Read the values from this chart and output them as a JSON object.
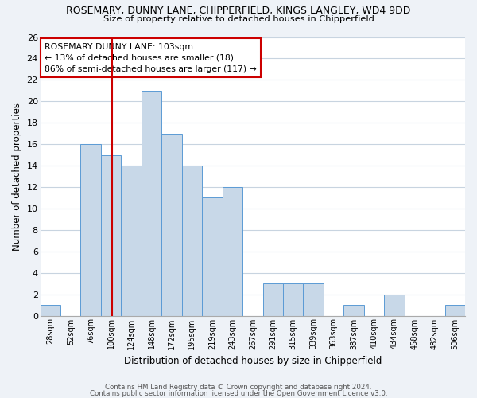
{
  "title": "ROSEMARY, DUNNY LANE, CHIPPERFIELD, KINGS LANGLEY, WD4 9DD",
  "subtitle": "Size of property relative to detached houses in Chipperfield",
  "xlabel": "Distribution of detached houses by size in Chipperfield",
  "ylabel": "Number of detached properties",
  "bin_labels": [
    "28sqm",
    "52sqm",
    "76sqm",
    "100sqm",
    "124sqm",
    "148sqm",
    "172sqm",
    "195sqm",
    "219sqm",
    "243sqm",
    "267sqm",
    "291sqm",
    "315sqm",
    "339sqm",
    "363sqm",
    "387sqm",
    "410sqm",
    "434sqm",
    "458sqm",
    "482sqm",
    "506sqm"
  ],
  "bar_heights": [
    1,
    0,
    16,
    15,
    14,
    21,
    17,
    14,
    11,
    12,
    0,
    3,
    3,
    3,
    0,
    1,
    0,
    2,
    0,
    0,
    1
  ],
  "bar_color": "#c8d8e8",
  "bar_edge_color": "#5b9bd5",
  "vline_x_index": 3,
  "annotation_title": "ROSEMARY DUNNY LANE: 103sqm",
  "annotation_line1": "← 13% of detached houses are smaller (18)",
  "annotation_line2": "86% of semi-detached houses are larger (117) →",
  "annotation_box_color": "#ffffff",
  "annotation_box_edge": "#cc0000",
  "ylim": [
    0,
    26
  ],
  "yticks": [
    0,
    2,
    4,
    6,
    8,
    10,
    12,
    14,
    16,
    18,
    20,
    22,
    24,
    26
  ],
  "footer_line1": "Contains HM Land Registry data © Crown copyright and database right 2024.",
  "footer_line2": "Contains public sector information licensed under the Open Government Licence v3.0.",
  "bg_color": "#eef2f7",
  "plot_bg_color": "#ffffff",
  "grid_color": "#c8d4e0",
  "vline_color": "#cc0000"
}
